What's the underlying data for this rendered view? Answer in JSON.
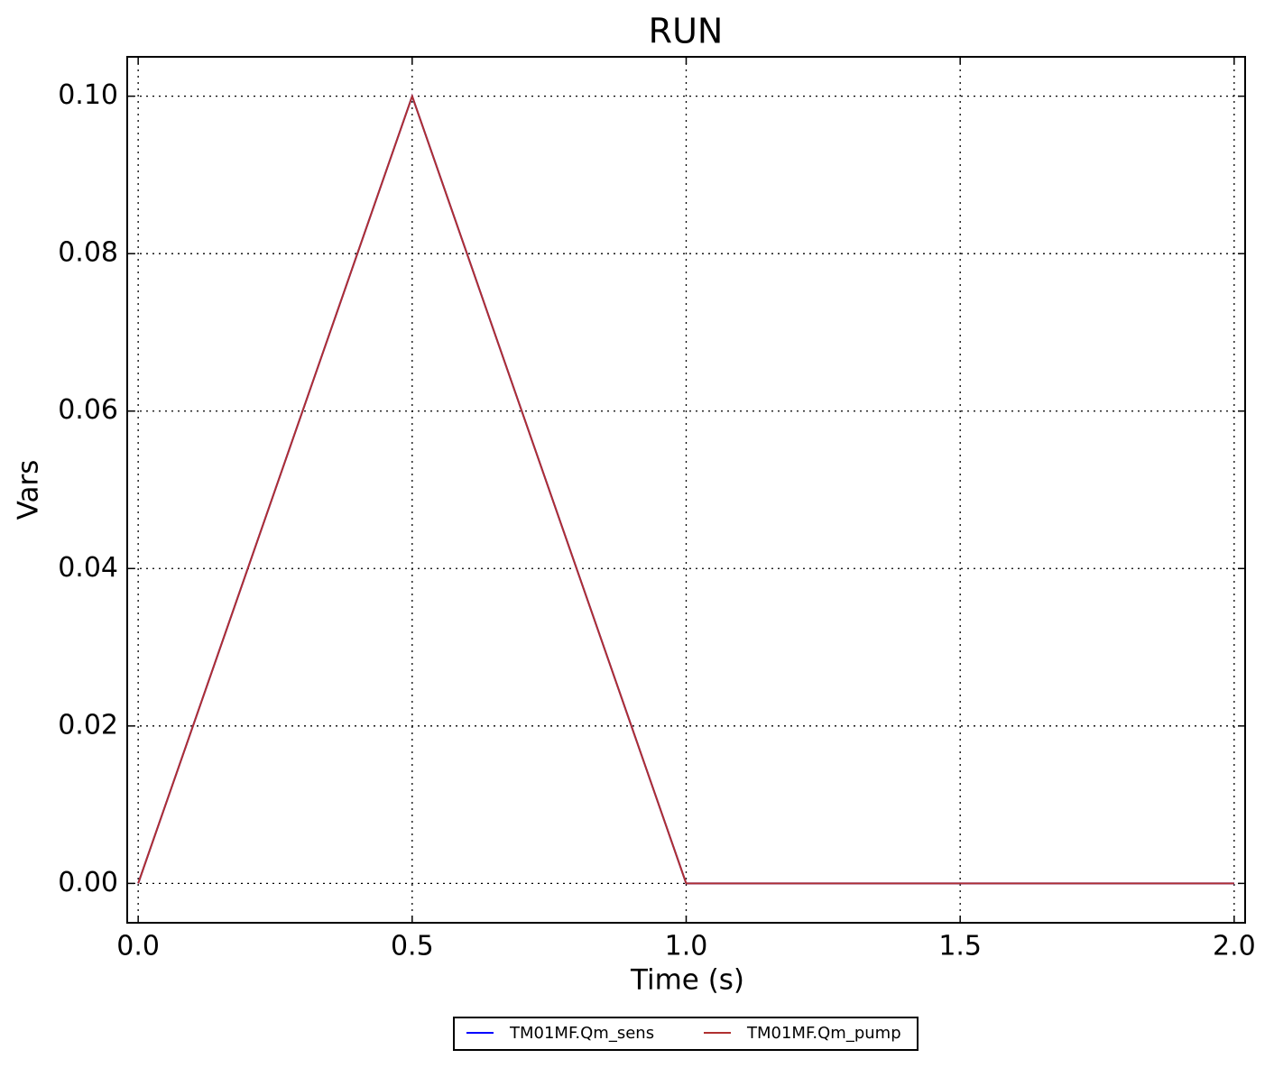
{
  "chart_data": {
    "type": "line",
    "title": "RUN",
    "x_label": "Time (s)",
    "y_label": "Vars",
    "x": [
      0,
      0.5,
      1.0,
      2.0
    ],
    "series": [
      {
        "name": "TM01MF.Qm_sens",
        "color": "#0000ff",
        "values": [
          0,
          0.1,
          0,
          0
        ]
      },
      {
        "name": "TM01MF.Qm_pump",
        "color": "#b03030",
        "values": [
          0,
          0.1,
          0,
          0
        ]
      }
    ],
    "xlim": [
      -0.02,
      2.02
    ],
    "xticks": [
      {
        "value": 0,
        "label": "0.0"
      },
      {
        "value": 0.5,
        "label": "0.5"
      },
      {
        "value": 1,
        "label": "1.0"
      },
      {
        "value": 1.5,
        "label": "1.5"
      },
      {
        "value": 2,
        "label": "2.0"
      }
    ],
    "ylim": [
      -0.005,
      0.105
    ],
    "yticks": [
      {
        "value": 0,
        "label": "0.00"
      },
      {
        "value": 0.02,
        "label": "0.02"
      },
      {
        "value": 0.04,
        "label": "0.04"
      },
      {
        "value": 0.06,
        "label": "0.06"
      },
      {
        "value": 0.08,
        "label": "0.08"
      },
      {
        "value": 0.1,
        "label": "0.10"
      }
    ],
    "grid": true,
    "legend": "lower center"
  }
}
